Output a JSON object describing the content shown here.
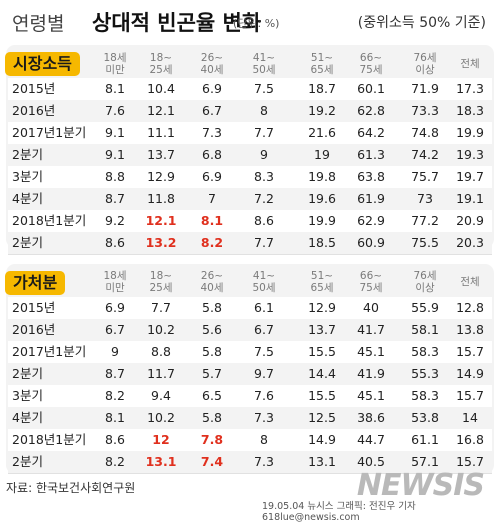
{
  "title": {
    "prefix": "연령별",
    "main": "상대적 빈곤율 변화",
    "unit": "(단위: %)",
    "note": "(중위소득 50% 기준)"
  },
  "chart_data": [
    {
      "type": "table",
      "title": "시장소득",
      "columns": [
        "18세 미만",
        "18~25세",
        "26~40세",
        "41~50세",
        "51~65세",
        "66~75세",
        "76세 이상",
        "전체"
      ],
      "rows": [
        {
          "label": "2015년",
          "values": [
            "8.1",
            "10.4",
            "6.9",
            "7.5",
            "18.7",
            "60.1",
            "71.9",
            "17.3"
          ]
        },
        {
          "label": "2016년",
          "values": [
            "7.6",
            "12.1",
            "6.7",
            "8",
            "19.2",
            "62.8",
            "73.3",
            "18.3"
          ]
        },
        {
          "label": "2017년1분기",
          "values": [
            "9.1",
            "11.1",
            "7.3",
            "7.7",
            "21.6",
            "64.2",
            "74.8",
            "19.9"
          ]
        },
        {
          "label": "2분기",
          "values": [
            "9.1",
            "13.7",
            "6.8",
            "9",
            "19",
            "61.3",
            "74.2",
            "19.3"
          ]
        },
        {
          "label": "3분기",
          "values": [
            "8.8",
            "12.9",
            "6.9",
            "8.3",
            "19.8",
            "63.8",
            "75.7",
            "19.7"
          ]
        },
        {
          "label": "4분기",
          "values": [
            "8.7",
            "11.8",
            "7",
            "7.2",
            "19.6",
            "61.9",
            "73",
            "19.1"
          ]
        },
        {
          "label": "2018년1분기",
          "values": [
            "9.2",
            "12.1",
            "8.1",
            "8.6",
            "19.9",
            "62.9",
            "77.2",
            "20.9"
          ]
        },
        {
          "label": "2분기",
          "values": [
            "8.6",
            "13.2",
            "8.2",
            "7.7",
            "18.5",
            "60.9",
            "75.5",
            "20.3"
          ]
        }
      ],
      "highlights": [
        [
          6,
          1
        ],
        [
          6,
          2
        ],
        [
          7,
          1
        ],
        [
          7,
          2
        ]
      ],
      "highlight_color": "#e0301e"
    },
    {
      "type": "table",
      "title": "가처분",
      "columns": [
        "18세 미만",
        "18~25세",
        "26~40세",
        "41~50세",
        "51~65세",
        "66~75세",
        "76세 이상",
        "전체"
      ],
      "rows": [
        {
          "label": "2015년",
          "values": [
            "6.9",
            "7.7",
            "5.8",
            "6.1",
            "12.9",
            "40",
            "55.9",
            "12.8"
          ]
        },
        {
          "label": "2016년",
          "values": [
            "6.7",
            "10.2",
            "5.6",
            "6.7",
            "13.7",
            "41.7",
            "58.1",
            "13.8"
          ]
        },
        {
          "label": "2017년1분기",
          "values": [
            "9",
            "8.8",
            "5.8",
            "7.5",
            "15.5",
            "45.1",
            "58.3",
            "15.7"
          ]
        },
        {
          "label": "2분기",
          "values": [
            "8.7",
            "11.7",
            "5.7",
            "9.7",
            "14.4",
            "41.9",
            "55.3",
            "14.9"
          ]
        },
        {
          "label": "3분기",
          "values": [
            "8.2",
            "9.4",
            "6.5",
            "7.6",
            "15.5",
            "45.1",
            "58.3",
            "15.7"
          ]
        },
        {
          "label": "4분기",
          "values": [
            "8.1",
            "10.2",
            "5.8",
            "7.3",
            "12.5",
            "38.6",
            "53.8",
            "14"
          ]
        },
        {
          "label": "2018년1분기",
          "values": [
            "8.6",
            "12",
            "7.8",
            "8",
            "14.9",
            "44.7",
            "61.1",
            "16.8"
          ]
        },
        {
          "label": "2분기",
          "values": [
            "8.2",
            "13.1",
            "7.4",
            "7.3",
            "13.1",
            "40.5",
            "57.1",
            "15.7"
          ]
        }
      ],
      "highlights": [
        [
          6,
          1
        ],
        [
          6,
          2
        ],
        [
          7,
          1
        ],
        [
          7,
          2
        ]
      ],
      "highlight_color": "#e0301e"
    }
  ],
  "headers": [
    {
      "line1": "18세",
      "line2": "미만"
    },
    {
      "line1": "18~",
      "line2": "25세"
    },
    {
      "line1": "26~",
      "line2": "40세"
    },
    {
      "line1": "41~",
      "line2": "50세"
    },
    {
      "line1": "51~",
      "line2": "65세"
    },
    {
      "line1": "66~",
      "line2": "75세"
    },
    {
      "line1": "76세",
      "line2": "이상"
    },
    {
      "line1": "전체",
      "line2": ""
    }
  ],
  "source": "자료: 한국보건사회연구원",
  "credit": "19.05.04  뉴시스 그래픽: 전진우 기자 618lue@newsis.com",
  "logo": "NEWSIS",
  "colors": {
    "accent": "#f6b800",
    "highlight": "#e0301e",
    "panel": "#f3f3f3"
  }
}
